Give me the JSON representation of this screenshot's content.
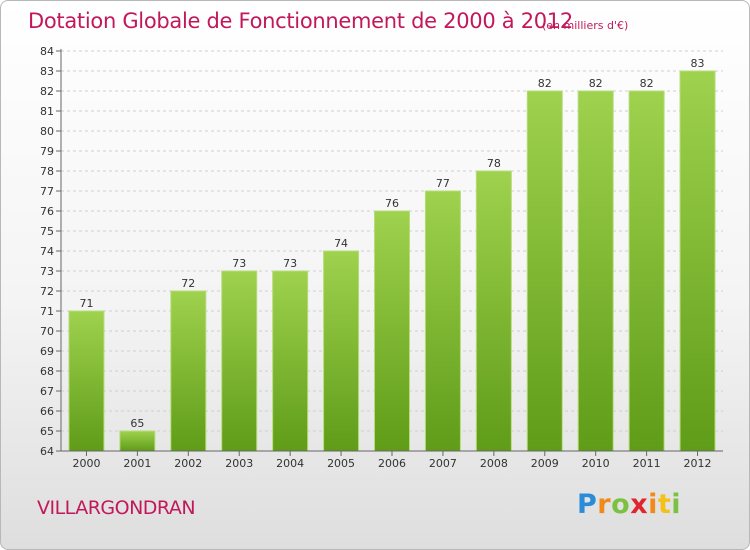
{
  "chart_data": {
    "type": "bar",
    "title": "Dotation Globale de Fonctionnement de 2000 à 2012",
    "subtitle": "(en milliers d'€)",
    "categories": [
      "2000",
      "2001",
      "2002",
      "2003",
      "2004",
      "2005",
      "2006",
      "2007",
      "2008",
      "2009",
      "2010",
      "2011",
      "2012"
    ],
    "values": [
      71,
      65,
      72,
      73,
      73,
      74,
      76,
      77,
      78,
      82,
      82,
      82,
      83
    ],
    "ylim": [
      64,
      84
    ],
    "yticks": [
      64,
      65,
      66,
      67,
      68,
      69,
      70,
      71,
      72,
      73,
      74,
      75,
      76,
      77,
      78,
      79,
      80,
      81,
      82,
      83,
      84
    ],
    "grid": true,
    "bar_color": "#7cb82f",
    "xlabel": "",
    "ylabel": ""
  },
  "footer": {
    "commune": "VILLARGONDRAN",
    "logo_letters": [
      "P",
      "r",
      "o",
      "x",
      "i",
      "t",
      "i"
    ]
  },
  "colors": {
    "title": "#c2185b",
    "logo": [
      "#2a8bd8",
      "#f08a1a",
      "#7cc242",
      "#e0262d",
      "#f3c117"
    ]
  }
}
